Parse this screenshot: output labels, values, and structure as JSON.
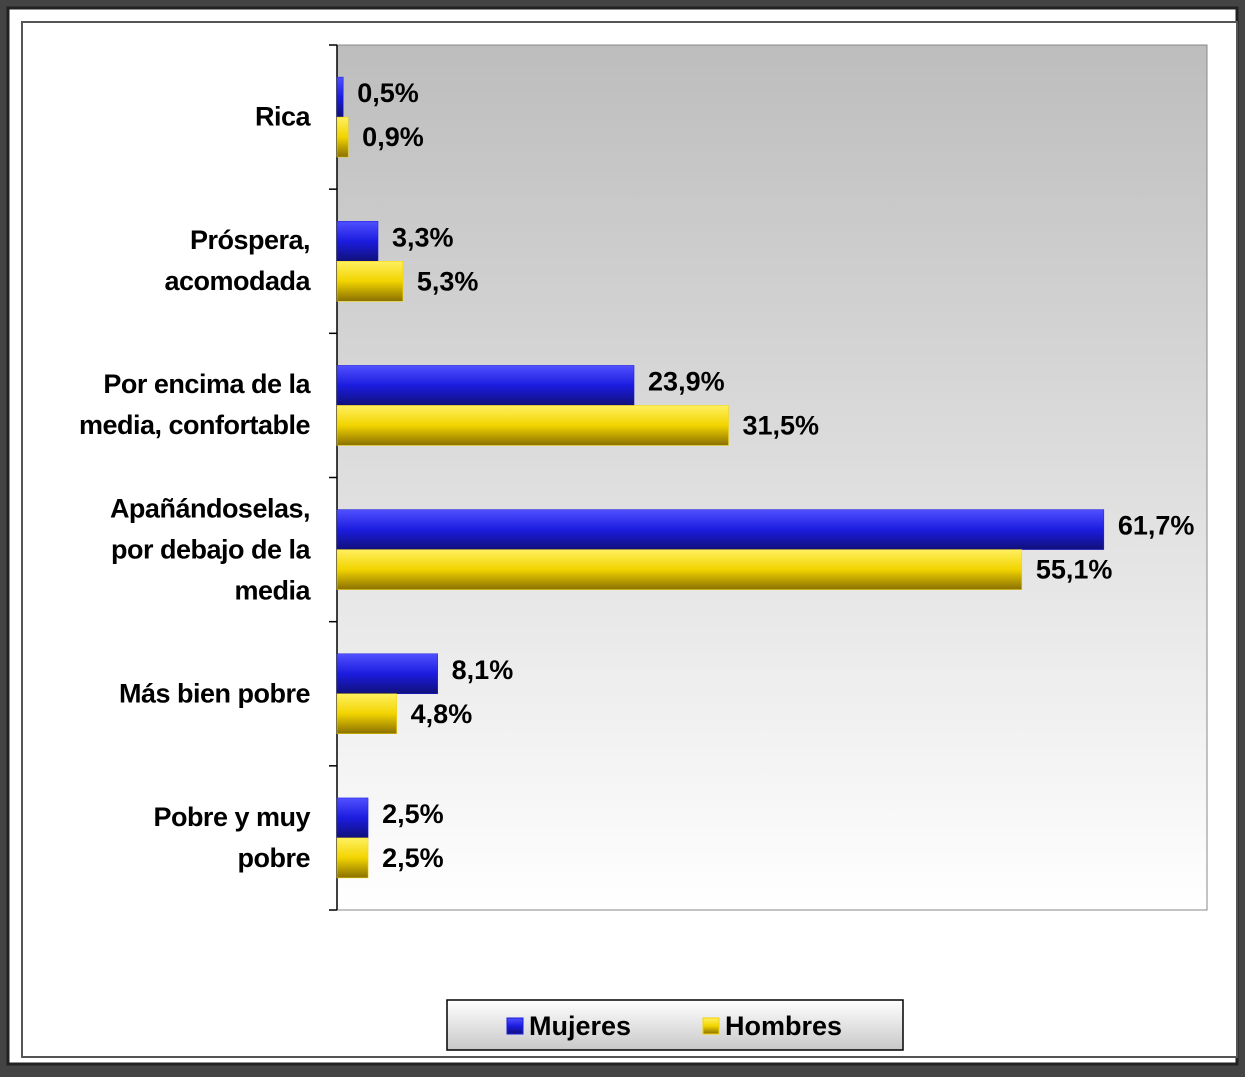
{
  "chart_data": {
    "type": "bar",
    "orientation": "horizontal",
    "categories": [
      "Rica",
      "Próspera, acomodada",
      "Por encima de la media, confortable",
      "Apañándoselas, por debajo de la media",
      "Más bien pobre",
      "Pobre y muy pobre"
    ],
    "series": [
      {
        "name": "Mujeres",
        "color": "#1c1ce0",
        "values": [
          0.5,
          3.3,
          23.9,
          61.7,
          8.1,
          2.5
        ],
        "value_labels": [
          "0,5%",
          "3,3%",
          "23,9%",
          "61,7%",
          "8,1%",
          "2,5%"
        ]
      },
      {
        "name": "Hombres",
        "color": "#f2d400",
        "values": [
          0.9,
          5.3,
          31.5,
          55.1,
          4.8,
          2.5
        ],
        "value_labels": [
          "0,9%",
          "5,3%",
          "31,5%",
          "55,1%",
          "4,8%",
          "2,5%"
        ]
      }
    ],
    "xlim": [
      0,
      70
    ],
    "legend": "bottom"
  }
}
